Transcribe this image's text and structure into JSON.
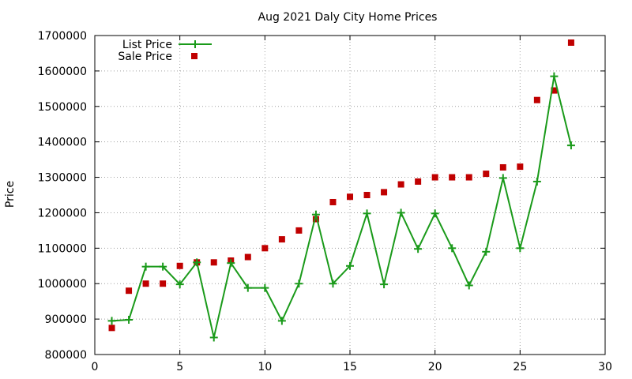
{
  "chart_data": {
    "type": "line",
    "title": "Aug 2021 Daly City Home Prices",
    "xlabel": "",
    "ylabel": "Price",
    "xlim": [
      0,
      30
    ],
    "ylim": [
      800000,
      1700000
    ],
    "xticks": [
      0,
      5,
      10,
      15,
      20,
      25,
      30
    ],
    "yticks": [
      800000,
      900000,
      1000000,
      1100000,
      1200000,
      1300000,
      1400000,
      1500000,
      1600000,
      1700000
    ],
    "grid": true,
    "legend_position": "top-left",
    "series": [
      {
        "name": "List Price",
        "style": "linespoints",
        "marker": "plus",
        "color": "#1a9a1a",
        "x": [
          1,
          2,
          3,
          4,
          5,
          6,
          7,
          8,
          9,
          10,
          11,
          12,
          13,
          14,
          15,
          16,
          17,
          18,
          19,
          20,
          21,
          22,
          23,
          24,
          25,
          26,
          27,
          28
        ],
        "values": [
          895000,
          898000,
          1048000,
          1048000,
          998000,
          1060000,
          848000,
          1058000,
          988000,
          988000,
          895000,
          1000000,
          1195000,
          1000000,
          1050000,
          1198000,
          998000,
          1200000,
          1098000,
          1198000,
          1100000,
          995000,
          1090000,
          1298000,
          1100000,
          1288000,
          1585000,
          1390000
        ]
      },
      {
        "name": "Sale Price",
        "style": "points",
        "marker": "square",
        "color": "#c00000",
        "x": [
          1,
          2,
          3,
          4,
          5,
          6,
          7,
          8,
          9,
          10,
          11,
          12,
          13,
          14,
          15,
          16,
          17,
          18,
          19,
          20,
          21,
          22,
          23,
          24,
          25,
          26,
          27,
          28
        ],
        "values": [
          875000,
          980000,
          1000000,
          1000000,
          1050000,
          1060000,
          1060000,
          1065000,
          1075000,
          1100000,
          1125000,
          1150000,
          1182000,
          1230000,
          1245000,
          1250000,
          1258000,
          1280000,
          1288000,
          1300000,
          1300000,
          1300000,
          1310000,
          1328000,
          1330000,
          1518000,
          1545000,
          1680000
        ]
      }
    ]
  }
}
